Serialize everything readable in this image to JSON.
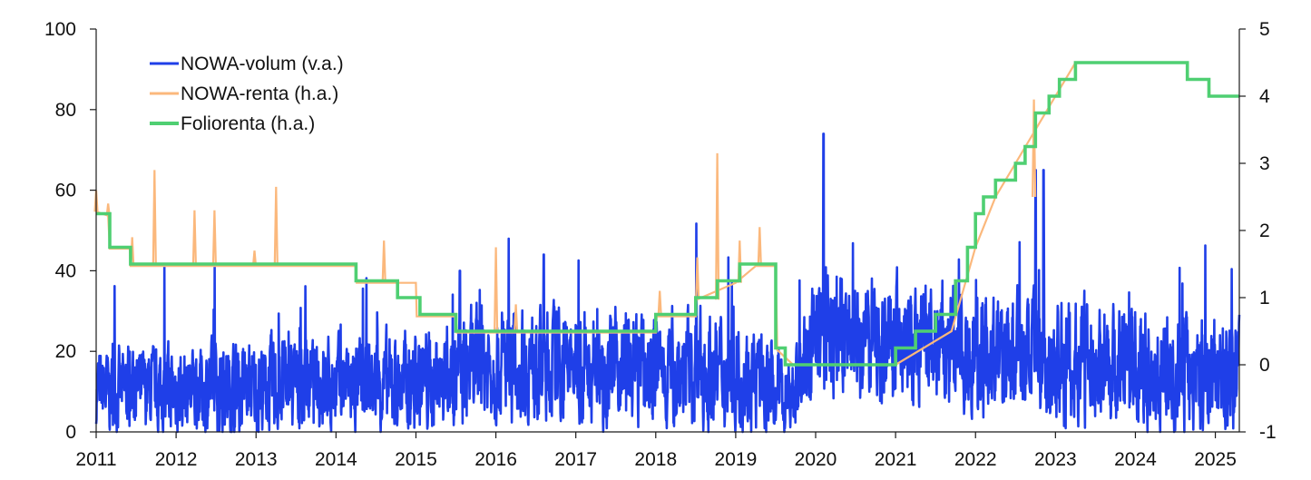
{
  "chart_data": {
    "type": "line",
    "title": "",
    "xlabel": "",
    "ylabel_left": "",
    "ylabel_right": "",
    "x_range": [
      2011.0,
      2025.3
    ],
    "x_ticks": [
      "2011",
      "2012",
      "2013",
      "2014",
      "2015",
      "2016",
      "2017",
      "2018",
      "2019",
      "2020",
      "2021",
      "2022",
      "2023",
      "2024",
      "2025"
    ],
    "ylim_left": [
      0,
      100
    ],
    "y_ticks_left": [
      "0",
      "20",
      "40",
      "60",
      "80",
      "100"
    ],
    "ylim_right": [
      -1,
      5
    ],
    "y_ticks_right": [
      "-1",
      "0",
      "1",
      "2",
      "3",
      "4",
      "5"
    ],
    "grid": false,
    "legend_position": "top-left",
    "colors": {
      "volume": "#1f3fe8",
      "nowa_rate": "#fbb87c",
      "folio": "#4fcf72"
    },
    "series": [
      {
        "name": "NOWA-volum (v.a.)",
        "axis": "left",
        "note_values": "daily volume, typical range 0-40, peaks near 74 in early 2020",
        "peaks": [
          {
            "x": 2015.55,
            "y": 40
          },
          {
            "x": 2016.6,
            "y": 44
          },
          {
            "x": 2020.1,
            "y": 74
          },
          {
            "x": 2022.75,
            "y": 65
          },
          {
            "x": 2022.85,
            "y": 65
          }
        ],
        "level_profile": [
          {
            "x": 2011.0,
            "level": 10,
            "amp": 8
          },
          {
            "x": 2015.0,
            "level": 12,
            "amp": 10
          },
          {
            "x": 2016.0,
            "level": 17,
            "amp": 11
          },
          {
            "x": 2019.0,
            "level": 15,
            "amp": 11
          },
          {
            "x": 2019.7,
            "level": 9,
            "amp": 8
          },
          {
            "x": 2020.0,
            "level": 24,
            "amp": 12
          },
          {
            "x": 2021.0,
            "level": 22,
            "amp": 12
          },
          {
            "x": 2022.0,
            "level": 20,
            "amp": 12
          },
          {
            "x": 2023.0,
            "level": 17,
            "amp": 12
          },
          {
            "x": 2025.3,
            "level": 14,
            "amp": 11
          }
        ]
      },
      {
        "name": "NOWA-renta (h.a.)",
        "axis": "right",
        "baseline": [
          {
            "x": 2011.0,
            "y": 2.28
          },
          {
            "x": 2011.15,
            "y": 2.22
          },
          {
            "x": 2011.17,
            "y": 1.73
          },
          {
            "x": 2011.42,
            "y": 1.73
          },
          {
            "x": 2011.43,
            "y": 1.47
          },
          {
            "x": 2014.25,
            "y": 1.47
          },
          {
            "x": 2014.26,
            "y": 1.22
          },
          {
            "x": 2015.0,
            "y": 1.22
          },
          {
            "x": 2015.01,
            "y": 0.72
          },
          {
            "x": 2015.5,
            "y": 0.72
          },
          {
            "x": 2015.51,
            "y": 0.48
          },
          {
            "x": 2018.0,
            "y": 0.48
          },
          {
            "x": 2018.01,
            "y": 0.72
          },
          {
            "x": 2018.5,
            "y": 0.72
          },
          {
            "x": 2018.51,
            "y": 0.97
          },
          {
            "x": 2019.0,
            "y": 1.22
          },
          {
            "x": 2019.25,
            "y": 1.47
          },
          {
            "x": 2019.5,
            "y": 1.47
          },
          {
            "x": 2019.52,
            "y": 0.22
          },
          {
            "x": 2019.72,
            "y": 0.0
          },
          {
            "x": 2021.0,
            "y": 0.0
          },
          {
            "x": 2021.7,
            "y": 0.5
          },
          {
            "x": 2022.0,
            "y": 1.75
          },
          {
            "x": 2022.25,
            "y": 2.5
          },
          {
            "x": 2022.75,
            "y": 3.5
          },
          {
            "x": 2023.0,
            "y": 4.0
          },
          {
            "x": 2023.25,
            "y": 4.5
          },
          {
            "x": 2024.65,
            "y": 4.5
          },
          {
            "x": 2024.66,
            "y": 4.25
          },
          {
            "x": 2024.92,
            "y": 4.25
          },
          {
            "x": 2024.93,
            "y": 4.0
          },
          {
            "x": 2025.3,
            "y": 4.0
          }
        ],
        "spikes": [
          {
            "x": 2011.0,
            "y": 2.6
          },
          {
            "x": 2011.15,
            "y": 2.4
          },
          {
            "x": 2011.45,
            "y": 1.9
          },
          {
            "x": 2011.73,
            "y": 2.9
          },
          {
            "x": 2012.23,
            "y": 2.3
          },
          {
            "x": 2012.48,
            "y": 2.3
          },
          {
            "x": 2012.98,
            "y": 1.7
          },
          {
            "x": 2013.25,
            "y": 2.65
          },
          {
            "x": 2014.6,
            "y": 1.85
          },
          {
            "x": 2016.0,
            "y": 1.75
          },
          {
            "x": 2016.25,
            "y": 0.9
          },
          {
            "x": 2018.05,
            "y": 1.1
          },
          {
            "x": 2018.52,
            "y": 1.6
          },
          {
            "x": 2018.77,
            "y": 3.15
          },
          {
            "x": 2019.05,
            "y": 1.85
          },
          {
            "x": 2019.3,
            "y": 2.05
          },
          {
            "x": 2022.73,
            "y": 3.95
          }
        ]
      },
      {
        "name": "Foliorenta (h.a.)",
        "axis": "right",
        "steps": [
          {
            "x": 2011.0,
            "y": 2.25
          },
          {
            "x": 2011.17,
            "y": 1.75
          },
          {
            "x": 2011.43,
            "y": 1.5
          },
          {
            "x": 2014.25,
            "y": 1.25
          },
          {
            "x": 2014.77,
            "y": 1.0
          },
          {
            "x": 2015.05,
            "y": 0.75
          },
          {
            "x": 2015.5,
            "y": 0.5
          },
          {
            "x": 2018.0,
            "y": 0.75
          },
          {
            "x": 2018.5,
            "y": 1.0
          },
          {
            "x": 2018.77,
            "y": 1.25
          },
          {
            "x": 2019.05,
            "y": 1.5
          },
          {
            "x": 2019.5,
            "y": 0.25
          },
          {
            "x": 2019.62,
            "y": 0.0
          },
          {
            "x": 2021.0,
            "y": 0.25
          },
          {
            "x": 2021.25,
            "y": 0.5
          },
          {
            "x": 2021.5,
            "y": 0.75
          },
          {
            "x": 2021.75,
            "y": 1.25
          },
          {
            "x": 2021.9,
            "y": 1.75
          },
          {
            "x": 2022.0,
            "y": 2.25
          },
          {
            "x": 2022.1,
            "y": 2.5
          },
          {
            "x": 2022.25,
            "y": 2.75
          },
          {
            "x": 2022.5,
            "y": 3.0
          },
          {
            "x": 2022.62,
            "y": 3.25
          },
          {
            "x": 2022.75,
            "y": 3.75
          },
          {
            "x": 2022.92,
            "y": 4.0
          },
          {
            "x": 2023.05,
            "y": 4.25
          },
          {
            "x": 2023.25,
            "y": 4.5
          },
          {
            "x": 2024.65,
            "y": 4.25
          },
          {
            "x": 2024.92,
            "y": 4.0
          },
          {
            "x": 2025.3,
            "y": 4.0
          }
        ]
      }
    ]
  }
}
